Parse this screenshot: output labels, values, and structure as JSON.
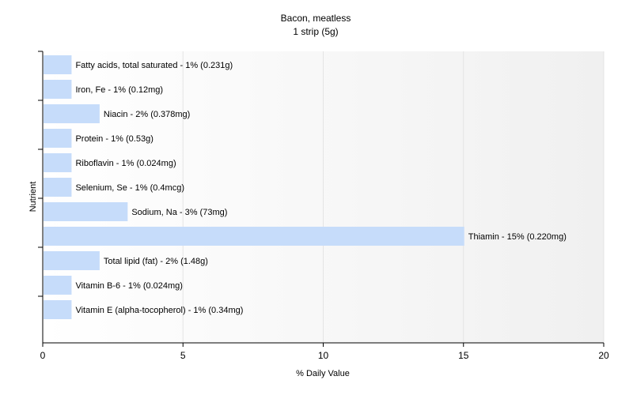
{
  "chart_data": {
    "type": "bar",
    "orientation": "horizontal",
    "title": "Bacon, meatless",
    "subtitle": "1 strip (5g)",
    "xlabel": "% Daily Value",
    "ylabel": "Nutrient",
    "xlim": [
      0,
      20
    ],
    "xticks": [
      0,
      5,
      10,
      15,
      20
    ],
    "grid": true,
    "bar_color": "#c6dcfa",
    "categories": [
      "Fatty acids, total saturated",
      "Iron, Fe",
      "Niacin",
      "Protein",
      "Riboflavin",
      "Selenium, Se",
      "Sodium, Na",
      "Thiamin",
      "Total lipid (fat)",
      "Vitamin B-6",
      "Vitamin E (alpha-tocopherol)"
    ],
    "values": [
      1,
      1,
      2,
      1,
      1,
      1,
      3,
      15,
      2,
      1,
      1
    ],
    "labels": [
      "Fatty acids, total saturated - 1% (0.231g)",
      "Iron, Fe - 1% (0.12mg)",
      "Niacin - 2% (0.378mg)",
      "Protein - 1% (0.53g)",
      "Riboflavin - 1% (0.024mg)",
      "Selenium, Se - 1% (0.4mcg)",
      "Sodium, Na - 3% (73mg)",
      "Thiamin - 15% (0.220mg)",
      "Total lipid (fat) - 2% (1.48g)",
      "Vitamin B-6 - 1% (0.024mg)",
      "Vitamin E (alpha-tocopherol) - 1% (0.34mg)"
    ]
  }
}
